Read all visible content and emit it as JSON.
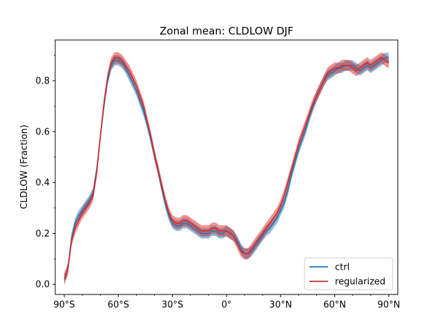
{
  "chart_data": {
    "type": "line",
    "title": "Zonal mean: CLDLOW DJF",
    "xlabel": "",
    "ylabel": "CLDLOW (Fraction)",
    "xlim": [
      -95,
      95
    ],
    "ylim": [
      -0.04,
      0.96
    ],
    "x_ticks": [
      -90,
      -60,
      -30,
      0,
      30,
      60,
      90
    ],
    "x_tick_labels": [
      "90°S",
      "60°S",
      "30°S",
      "0°",
      "30°N",
      "60°N",
      "90°N"
    ],
    "y_ticks": [
      0.0,
      0.2,
      0.4,
      0.6,
      0.8
    ],
    "y_tick_labels": [
      "0.0",
      "0.2",
      "0.4",
      "0.6",
      "0.8"
    ],
    "legend_position": "lower-right",
    "series": [
      {
        "name": "ctrl",
        "color": "#1f77b4",
        "band_color": "#1f77b4",
        "band_halfwidth": 0.02,
        "x": [
          -90,
          -88,
          -86,
          -84,
          -82,
          -80,
          -78,
          -76,
          -74,
          -72,
          -70,
          -68,
          -66,
          -64,
          -62,
          -60,
          -58,
          -56,
          -54,
          -52,
          -50,
          -48,
          -46,
          -44,
          -42,
          -40,
          -38,
          -36,
          -34,
          -32,
          -30,
          -28,
          -26,
          -24,
          -22,
          -20,
          -18,
          -16,
          -14,
          -12,
          -10,
          -8,
          -6,
          -4,
          -2,
          0,
          2,
          4,
          6,
          8,
          10,
          12,
          14,
          16,
          18,
          20,
          22,
          24,
          26,
          28,
          30,
          32,
          34,
          36,
          38,
          40,
          42,
          44,
          46,
          48,
          50,
          52,
          54,
          56,
          58,
          60,
          62,
          64,
          66,
          68,
          70,
          72,
          74,
          76,
          78,
          80,
          82,
          84,
          86,
          88,
          90
        ],
        "values": [
          0.02,
          0.06,
          0.18,
          0.24,
          0.27,
          0.29,
          0.31,
          0.33,
          0.36,
          0.45,
          0.58,
          0.7,
          0.8,
          0.86,
          0.88,
          0.88,
          0.87,
          0.85,
          0.82,
          0.79,
          0.76,
          0.72,
          0.68,
          0.63,
          0.57,
          0.51,
          0.45,
          0.38,
          0.32,
          0.27,
          0.24,
          0.23,
          0.23,
          0.24,
          0.24,
          0.23,
          0.22,
          0.21,
          0.2,
          0.2,
          0.2,
          0.21,
          0.21,
          0.2,
          0.2,
          0.21,
          0.2,
          0.19,
          0.17,
          0.14,
          0.12,
          0.12,
          0.13,
          0.15,
          0.17,
          0.19,
          0.21,
          0.22,
          0.24,
          0.26,
          0.29,
          0.32,
          0.37,
          0.43,
          0.48,
          0.53,
          0.57,
          0.61,
          0.66,
          0.7,
          0.74,
          0.77,
          0.8,
          0.82,
          0.83,
          0.84,
          0.85,
          0.85,
          0.86,
          0.86,
          0.86,
          0.85,
          0.84,
          0.85,
          0.86,
          0.85,
          0.86,
          0.87,
          0.88,
          0.89,
          0.89
        ]
      },
      {
        "name": "regularized",
        "color": "#d62728",
        "band_color": "#d62728",
        "band_halfwidth": 0.022,
        "x": [
          -90,
          -88,
          -86,
          -84,
          -82,
          -80,
          -78,
          -76,
          -74,
          -72,
          -70,
          -68,
          -66,
          -64,
          -62,
          -60,
          -58,
          -56,
          -54,
          -52,
          -50,
          -48,
          -46,
          -44,
          -42,
          -40,
          -38,
          -36,
          -34,
          -32,
          -30,
          -28,
          -26,
          -24,
          -22,
          -20,
          -18,
          -16,
          -14,
          -12,
          -10,
          -8,
          -6,
          -4,
          -2,
          0,
          2,
          4,
          6,
          8,
          10,
          12,
          14,
          16,
          18,
          20,
          22,
          24,
          26,
          28,
          30,
          32,
          34,
          36,
          38,
          40,
          42,
          44,
          46,
          48,
          50,
          52,
          54,
          56,
          58,
          60,
          62,
          64,
          66,
          68,
          70,
          72,
          74,
          76,
          78,
          80,
          82,
          84,
          86,
          88,
          90
        ],
        "values": [
          0.02,
          0.06,
          0.17,
          0.22,
          0.25,
          0.28,
          0.3,
          0.32,
          0.35,
          0.44,
          0.58,
          0.71,
          0.81,
          0.87,
          0.89,
          0.89,
          0.88,
          0.86,
          0.84,
          0.81,
          0.78,
          0.74,
          0.7,
          0.64,
          0.58,
          0.51,
          0.45,
          0.39,
          0.33,
          0.28,
          0.25,
          0.24,
          0.24,
          0.25,
          0.25,
          0.24,
          0.23,
          0.22,
          0.21,
          0.21,
          0.21,
          0.22,
          0.22,
          0.21,
          0.21,
          0.21,
          0.2,
          0.19,
          0.16,
          0.13,
          0.12,
          0.12,
          0.14,
          0.16,
          0.18,
          0.2,
          0.22,
          0.24,
          0.26,
          0.28,
          0.31,
          0.35,
          0.4,
          0.45,
          0.5,
          0.55,
          0.59,
          0.63,
          0.67,
          0.71,
          0.74,
          0.77,
          0.8,
          0.83,
          0.84,
          0.85,
          0.85,
          0.86,
          0.86,
          0.86,
          0.85,
          0.84,
          0.85,
          0.86,
          0.87,
          0.86,
          0.87,
          0.88,
          0.89,
          0.88,
          0.87
        ]
      }
    ]
  }
}
